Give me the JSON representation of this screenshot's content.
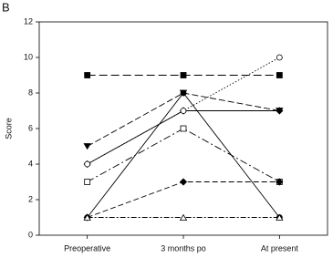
{
  "chart_data": {
    "type": "line",
    "panel_label": "B",
    "y_label": "Score",
    "categories": [
      "Preoperative",
      "3 months po",
      "At present"
    ],
    "ylim": [
      0,
      12
    ],
    "yticks": [
      0,
      2,
      4,
      6,
      8,
      10,
      12
    ],
    "series": [
      {
        "color": "#000000",
        "marker": "square",
        "fill": true,
        "dash": "9,4",
        "values": [
          9,
          9,
          9
        ]
      },
      {
        "color": "#000000",
        "marker": "triangle-down",
        "fill": true,
        "dash": "7,3",
        "values": [
          5,
          8,
          7
        ]
      },
      {
        "color": "#000000",
        "marker": "diamond",
        "fill": true,
        "dash": "",
        "values": [
          4,
          7,
          7
        ]
      },
      {
        "color": "#000000",
        "marker": "circle",
        "fill": false,
        "dash": "1.5,2",
        "values": [
          4,
          7,
          10
        ]
      },
      {
        "color": "#000000",
        "marker": "square",
        "fill": false,
        "dash": "8,3,2,3",
        "values": [
          3,
          6,
          3
        ]
      },
      {
        "color": "#000000",
        "marker": "circle",
        "fill": true,
        "dash": "",
        "values": [
          1,
          8,
          1
        ]
      },
      {
        "color": "#000000",
        "marker": "diamond",
        "fill": true,
        "dash": "6,3",
        "values": [
          1,
          3,
          3
        ]
      },
      {
        "color": "#000000",
        "marker": "triangle-up",
        "fill": false,
        "dash": "6,2,2,2",
        "values": [
          1,
          1,
          1
        ]
      }
    ]
  }
}
